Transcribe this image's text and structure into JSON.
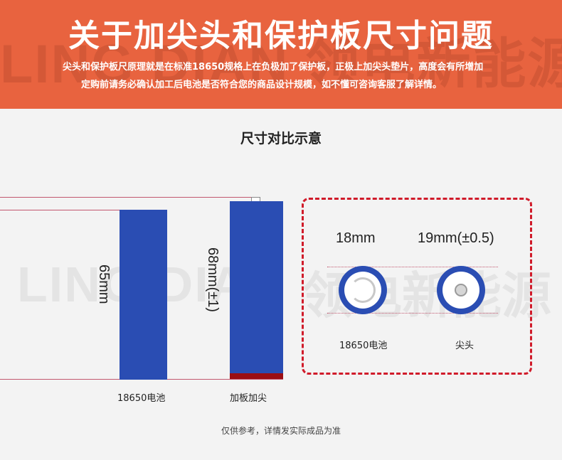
{
  "banner": {
    "title": "关于加尖头和保护板尺寸问题",
    "watermark": "LING DIAN 领电新能源",
    "desc_line1": "尖头和保护板尺原理就是在标准18650规格上在负极加了保护板，正极上加尖头垫片，高度会有所增加",
    "desc_line2": "定购前请务必确认加工后电池是否符合您的商品设计规模，如不懂可咨询客服了解详情。",
    "color": "#e8633f"
  },
  "section_title": "尺寸对比示意",
  "watermark_mid": {
    "latin": "LING DIAN",
    "cn": "领电新能源"
  },
  "comparison": {
    "cell_a": {
      "height_label": "65mm",
      "caption": "18650电池"
    },
    "cell_b": {
      "height_label": "68mm(±1)",
      "caption": "加板加尖"
    }
  },
  "top_view": {
    "cell_a": {
      "diameter_label": "18mm",
      "caption": "18650电池"
    },
    "cell_b": {
      "diameter_label": "19mm(±0.5)",
      "caption": "尖头"
    }
  },
  "footnote": "仅供参考，详情发实际成品为准",
  "colors": {
    "cell_blue": "#2a4db3",
    "base_red": "#9b0e14",
    "dash_red": "#d01b2a",
    "guide_line": "#c2566e"
  }
}
